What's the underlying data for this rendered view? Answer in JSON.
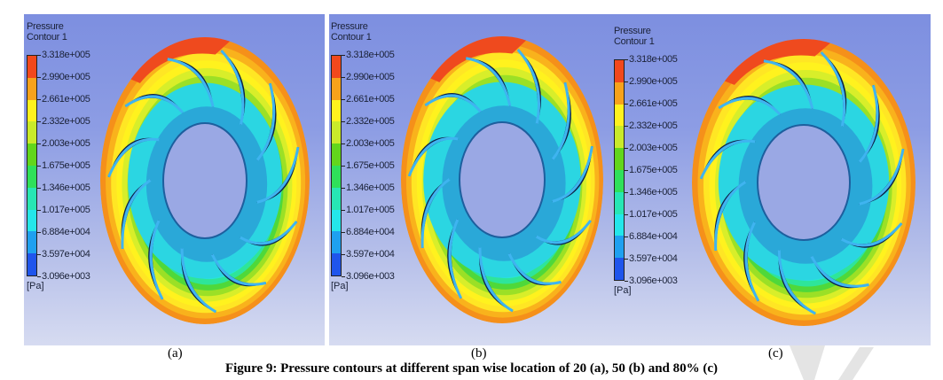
{
  "figure": {
    "caption": "Figure 9: Pressure contours at different span wise location of 20 (a), 50 (b) and 80% (c)",
    "legend": {
      "title_line1": "Pressure",
      "title_line2": "Contour 1",
      "unit": "[Pa]",
      "levels": [
        "3.318e+005",
        "2.990e+005",
        "2.661e+005",
        "2.332e+005",
        "2.003e+005",
        "1.675e+005",
        "1.346e+005",
        "1.017e+005",
        "6.884e+004",
        "3.597e+004",
        "3.096e+003"
      ],
      "band_colors": [
        "#f2481c",
        "#f7a21b",
        "#fff21e",
        "#c9ea2a",
        "#62d61c",
        "#2fe05a",
        "#27e6b4",
        "#24e6ea",
        "#1ea0f0",
        "#1f55ec"
      ]
    },
    "panels": [
      {
        "id": "a",
        "label": "(a)",
        "span_percent": 20,
        "blade_count": 11
      },
      {
        "id": "b",
        "label": "(b)",
        "span_percent": 50,
        "blade_count": 11
      },
      {
        "id": "c",
        "label": "(c)",
        "span_percent": 80,
        "blade_count": 11
      }
    ]
  }
}
